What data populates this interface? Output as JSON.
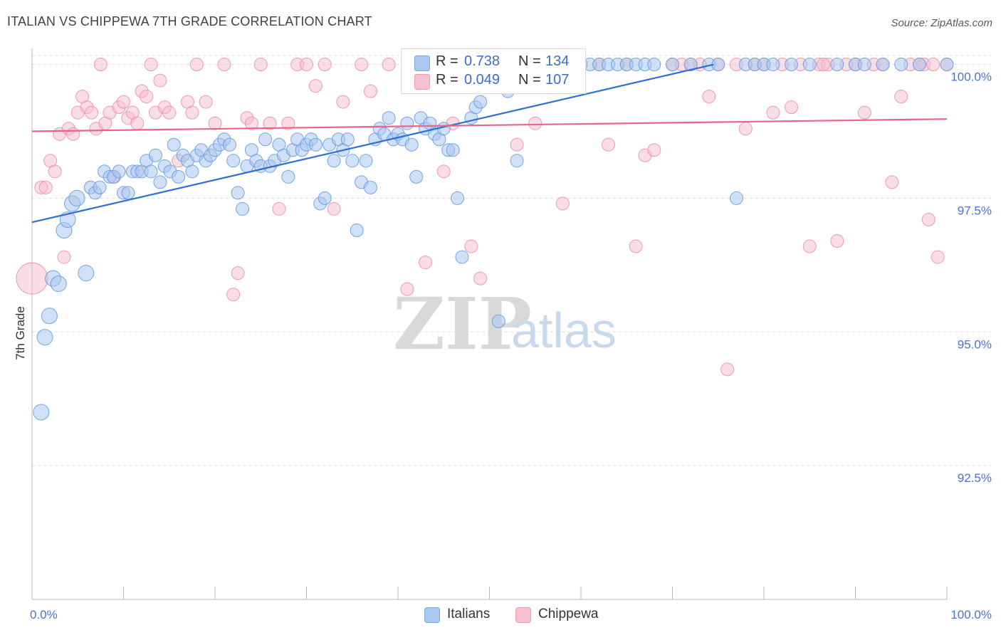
{
  "title": "ITALIAN VS CHIPPEWA 7TH GRADE CORRELATION CHART",
  "source": "Source: ZipAtlas.com",
  "watermark": {
    "zip": "ZIP",
    "atlas": "atlas"
  },
  "legend": {
    "r_label": "R =",
    "n_label": "N =",
    "rows": [
      {
        "r": "0.738",
        "n": "134",
        "color": "#aac8f0",
        "border": "#7aa6e0"
      },
      {
        "r": "0.049",
        "n": "107",
        "color": "#f8c1cf",
        "border": "#ef9ab2"
      }
    ]
  },
  "bottom_legend": [
    {
      "label": "Italians",
      "color": "#aac8f0",
      "border": "#7aa6e0"
    },
    {
      "label": "Chippewa",
      "color": "#f8c1cf",
      "border": "#ef9ab2"
    }
  ],
  "chart_data": {
    "type": "scatter",
    "xlabel": "",
    "ylabel": "7th Grade",
    "xlim": [
      0,
      100
    ],
    "ylim": [
      90.0,
      100.3
    ],
    "x_tick_labels": [
      "0.0%",
      "100.0%"
    ],
    "y_ticks": [
      {
        "value": 100.0,
        "label": "100.0%"
      },
      {
        "value": 97.5,
        "label": "97.5%"
      },
      {
        "value": 95.0,
        "label": "95.0%"
      },
      {
        "value": 92.5,
        "label": "92.5%"
      }
    ],
    "grid": true,
    "legend_position": "top-center",
    "series": [
      {
        "name": "Italians",
        "color": "#6a9be0",
        "fill": "#a9c7ee",
        "trend": {
          "x0": 0,
          "y0": 97.05,
          "x1": 74.5,
          "y1": 100.0,
          "color": "#2e6fd3"
        },
        "points": [
          [
            1.0,
            93.5
          ],
          [
            1.4,
            94.9
          ],
          [
            1.9,
            95.3
          ],
          [
            2.3,
            96.0
          ],
          [
            2.9,
            95.9
          ],
          [
            3.5,
            96.9
          ],
          [
            3.9,
            97.1
          ],
          [
            4.4,
            97.4
          ],
          [
            4.9,
            97.5
          ],
          [
            5.9,
            96.1
          ],
          [
            6.4,
            97.7
          ],
          [
            6.9,
            97.6
          ],
          [
            7.4,
            97.7
          ],
          [
            7.9,
            98.0
          ],
          [
            8.5,
            97.9
          ],
          [
            8.9,
            97.9
          ],
          [
            9.5,
            98.0
          ],
          [
            10.0,
            97.6
          ],
          [
            10.5,
            97.6
          ],
          [
            11.0,
            98.0
          ],
          [
            11.5,
            98.0
          ],
          [
            12.0,
            98.0
          ],
          [
            12.5,
            98.2
          ],
          [
            13.0,
            98.0
          ],
          [
            13.5,
            98.3
          ],
          [
            14.0,
            97.8
          ],
          [
            14.5,
            98.1
          ],
          [
            15.1,
            98.0
          ],
          [
            15.5,
            98.5
          ],
          [
            16.0,
            97.9
          ],
          [
            16.5,
            98.3
          ],
          [
            17.0,
            98.2
          ],
          [
            17.5,
            98.0
          ],
          [
            18.0,
            98.3
          ],
          [
            18.5,
            98.4
          ],
          [
            19.0,
            98.2
          ],
          [
            19.5,
            98.3
          ],
          [
            20.0,
            98.4
          ],
          [
            20.5,
            98.5
          ],
          [
            21.0,
            98.6
          ],
          [
            21.6,
            98.5
          ],
          [
            22.0,
            98.2
          ],
          [
            22.5,
            97.6
          ],
          [
            23.0,
            97.3
          ],
          [
            23.5,
            98.1
          ],
          [
            24.0,
            98.4
          ],
          [
            24.5,
            98.2
          ],
          [
            25.0,
            98.1
          ],
          [
            25.5,
            98.6
          ],
          [
            26.0,
            98.1
          ],
          [
            26.5,
            98.2
          ],
          [
            27.0,
            98.5
          ],
          [
            27.5,
            98.3
          ],
          [
            28.0,
            97.9
          ],
          [
            28.5,
            98.4
          ],
          [
            29.0,
            98.6
          ],
          [
            29.5,
            98.4
          ],
          [
            30.0,
            98.5
          ],
          [
            30.5,
            98.6
          ],
          [
            31.0,
            98.5
          ],
          [
            31.5,
            97.4
          ],
          [
            32.0,
            97.5
          ],
          [
            32.5,
            98.5
          ],
          [
            33.0,
            98.2
          ],
          [
            33.5,
            98.6
          ],
          [
            34.0,
            98.4
          ],
          [
            34.5,
            98.6
          ],
          [
            35.0,
            98.2
          ],
          [
            35.5,
            96.9
          ],
          [
            36.0,
            97.8
          ],
          [
            36.5,
            98.2
          ],
          [
            37.0,
            97.7
          ],
          [
            37.5,
            98.6
          ],
          [
            38.0,
            98.8
          ],
          [
            38.5,
            98.7
          ],
          [
            39.0,
            99.0
          ],
          [
            39.5,
            98.6
          ],
          [
            40.0,
            98.7
          ],
          [
            40.5,
            98.6
          ],
          [
            41.0,
            98.9
          ],
          [
            41.5,
            98.5
          ],
          [
            42.0,
            97.9
          ],
          [
            42.5,
            99.0
          ],
          [
            43.0,
            98.8
          ],
          [
            43.5,
            98.9
          ],
          [
            44.0,
            98.7
          ],
          [
            44.5,
            98.6
          ],
          [
            45.0,
            98.8
          ],
          [
            45.5,
            98.4
          ],
          [
            46.0,
            98.4
          ],
          [
            46.5,
            97.5
          ],
          [
            47.0,
            96.4
          ],
          [
            48.0,
            99.0
          ],
          [
            48.5,
            99.2
          ],
          [
            49.0,
            99.3
          ],
          [
            50.0,
            100.0
          ],
          [
            51.0,
            95.2
          ],
          [
            52.0,
            99.5
          ],
          [
            53.0,
            98.2
          ],
          [
            54.0,
            100.0
          ],
          [
            55.0,
            100.0
          ],
          [
            56.0,
            100.0
          ],
          [
            57.0,
            100.0
          ],
          [
            58.0,
            100.0
          ],
          [
            59.0,
            100.0
          ],
          [
            60.0,
            100.0
          ],
          [
            61.0,
            100.0
          ],
          [
            62.0,
            100.0
          ],
          [
            63.0,
            100.0
          ],
          [
            64.0,
            100.0
          ],
          [
            65.0,
            100.0
          ],
          [
            66.0,
            100.0
          ],
          [
            67.0,
            100.0
          ],
          [
            68.0,
            100.0
          ],
          [
            70.0,
            100.0
          ],
          [
            72.0,
            100.0
          ],
          [
            74.0,
            100.0
          ],
          [
            75.0,
            100.0
          ],
          [
            77.0,
            97.5
          ],
          [
            78.0,
            100.0
          ],
          [
            79.0,
            100.0
          ],
          [
            80.0,
            100.0
          ],
          [
            81.0,
            100.0
          ],
          [
            83.0,
            100.0
          ],
          [
            85.0,
            100.0
          ],
          [
            88.0,
            100.0
          ],
          [
            90.0,
            100.0
          ],
          [
            91.0,
            100.0
          ],
          [
            93.0,
            100.0
          ],
          [
            95.0,
            100.0
          ],
          [
            97.0,
            100.0
          ],
          [
            100.0,
            100.0
          ]
        ]
      },
      {
        "name": "Chippewa",
        "color": "#ee8fac",
        "fill": "#f6bccb",
        "trend": {
          "x0": 0,
          "y0": 98.75,
          "x1": 100,
          "y1": 98.98,
          "color": "#e8638d"
        },
        "points": [
          [
            0.0,
            96.0
          ],
          [
            1.0,
            97.7
          ],
          [
            1.5,
            97.7
          ],
          [
            2.0,
            98.2
          ],
          [
            2.5,
            98.0
          ],
          [
            3.0,
            98.7
          ],
          [
            3.5,
            96.4
          ],
          [
            4.0,
            98.8
          ],
          [
            4.5,
            98.7
          ],
          [
            5.0,
            99.1
          ],
          [
            5.5,
            99.4
          ],
          [
            6.0,
            99.2
          ],
          [
            6.5,
            99.1
          ],
          [
            7.0,
            98.8
          ],
          [
            7.5,
            100.0
          ],
          [
            8.0,
            98.9
          ],
          [
            8.5,
            99.1
          ],
          [
            9.0,
            97.9
          ],
          [
            9.5,
            99.2
          ],
          [
            10.0,
            99.3
          ],
          [
            10.5,
            99.0
          ],
          [
            11.0,
            99.1
          ],
          [
            11.5,
            98.9
          ],
          [
            12.0,
            99.5
          ],
          [
            12.5,
            99.4
          ],
          [
            13.0,
            100.0
          ],
          [
            13.5,
            99.1
          ],
          [
            14.0,
            99.7
          ],
          [
            14.5,
            99.2
          ],
          [
            15.0,
            99.1
          ],
          [
            16.0,
            98.2
          ],
          [
            17.0,
            99.3
          ],
          [
            17.5,
            99.1
          ],
          [
            18.0,
            100.0
          ],
          [
            19.0,
            99.3
          ],
          [
            20.0,
            98.9
          ],
          [
            21.0,
            100.0
          ],
          [
            22.0,
            95.7
          ],
          [
            22.5,
            96.1
          ],
          [
            23.5,
            99.0
          ],
          [
            24.0,
            98.9
          ],
          [
            25.0,
            100.0
          ],
          [
            26.0,
            98.9
          ],
          [
            27.0,
            97.3
          ],
          [
            28.0,
            98.9
          ],
          [
            29.0,
            100.0
          ],
          [
            30.0,
            100.0
          ],
          [
            31.0,
            99.6
          ],
          [
            32.0,
            100.0
          ],
          [
            33.0,
            97.3
          ],
          [
            34.0,
            99.3
          ],
          [
            36.0,
            100.0
          ],
          [
            37.0,
            99.5
          ],
          [
            39.0,
            100.0
          ],
          [
            41.0,
            95.8
          ],
          [
            42.0,
            100.0
          ],
          [
            43.0,
            96.3
          ],
          [
            44.0,
            100.0
          ],
          [
            45.0,
            98.0
          ],
          [
            46.0,
            98.9
          ],
          [
            47.0,
            100.0
          ],
          [
            48.0,
            96.6
          ],
          [
            49.0,
            96.0
          ],
          [
            50.0,
            100.0
          ],
          [
            53.0,
            98.5
          ],
          [
            54.0,
            100.0
          ],
          [
            55.0,
            98.9
          ],
          [
            58.0,
            97.4
          ],
          [
            60.0,
            100.0
          ],
          [
            62.0,
            100.0
          ],
          [
            63.0,
            98.5
          ],
          [
            65.0,
            100.0
          ],
          [
            66.0,
            96.6
          ],
          [
            67.0,
            98.3
          ],
          [
            68.0,
            98.4
          ],
          [
            70.0,
            100.0
          ],
          [
            71.0,
            100.0
          ],
          [
            72.0,
            100.0
          ],
          [
            73.0,
            100.0
          ],
          [
            74.0,
            99.4
          ],
          [
            75.0,
            100.0
          ],
          [
            76.0,
            94.3
          ],
          [
            77.0,
            100.0
          ],
          [
            78.0,
            98.8
          ],
          [
            79.0,
            100.0
          ],
          [
            80.0,
            100.0
          ],
          [
            81.0,
            99.1
          ],
          [
            82.0,
            100.0
          ],
          [
            83.0,
            99.2
          ],
          [
            84.0,
            100.0
          ],
          [
            85.0,
            96.6
          ],
          [
            86.0,
            100.0
          ],
          [
            87.0,
            100.0
          ],
          [
            88.0,
            96.7
          ],
          [
            89.0,
            100.0
          ],
          [
            90.0,
            100.0
          ],
          [
            91.0,
            99.1
          ],
          [
            92.0,
            100.0
          ],
          [
            93.0,
            100.0
          ],
          [
            94.0,
            97.8
          ],
          [
            95.0,
            99.4
          ],
          [
            96.0,
            100.0
          ],
          [
            97.0,
            100.0
          ],
          [
            98.0,
            97.1
          ],
          [
            99.0,
            96.4
          ],
          [
            100.0,
            100.0
          ],
          [
            97.5,
            100.0
          ],
          [
            98.5,
            100.0
          ],
          [
            86.5,
            100.0
          ]
        ]
      }
    ]
  }
}
